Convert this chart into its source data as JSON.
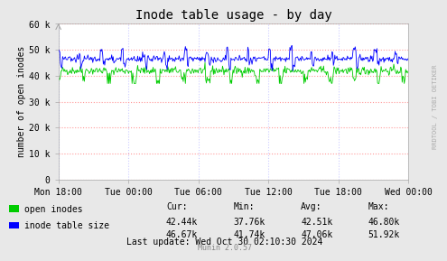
{
  "title": "Inode table usage - by day",
  "ylabel": "number of open inodes",
  "bg_color": "#e8e8e8",
  "plot_bg_color": "#ffffff",
  "grid_color_major": "#ff9999",
  "grid_color_minor": "#ccccff",
  "x_ticks_labels": [
    "Mon 18:00",
    "Tue 00:00",
    "Tue 06:00",
    "Tue 12:00",
    "Tue 18:00",
    "Wed 00:00"
  ],
  "ylim": [
    0,
    60000
  ],
  "yticks": [
    0,
    10000,
    20000,
    30000,
    40000,
    50000,
    60000
  ],
  "ytick_labels": [
    "0",
    "10 k",
    "20 k",
    "30 k",
    "40 k",
    "50 k",
    "60 k"
  ],
  "legend_items": [
    "open inodes",
    "inode table size"
  ],
  "legend_colors": [
    "#00cc00",
    "#0000ff"
  ],
  "footer_text": "Last update: Wed Oct 30 02:10:30 2024",
  "munin_text": "Munin 2.0.57",
  "table_headers": [
    "Cur:",
    "Min:",
    "Avg:",
    "Max:"
  ],
  "open_inodes_stats": [
    "42.44k",
    "37.76k",
    "42.51k",
    "46.80k"
  ],
  "inode_table_stats": [
    "46.67k",
    "41.74k",
    "47.06k",
    "51.92k"
  ],
  "rrdtool_text": "RRDTOOL / TOBI OETIKER",
  "num_points": 500
}
